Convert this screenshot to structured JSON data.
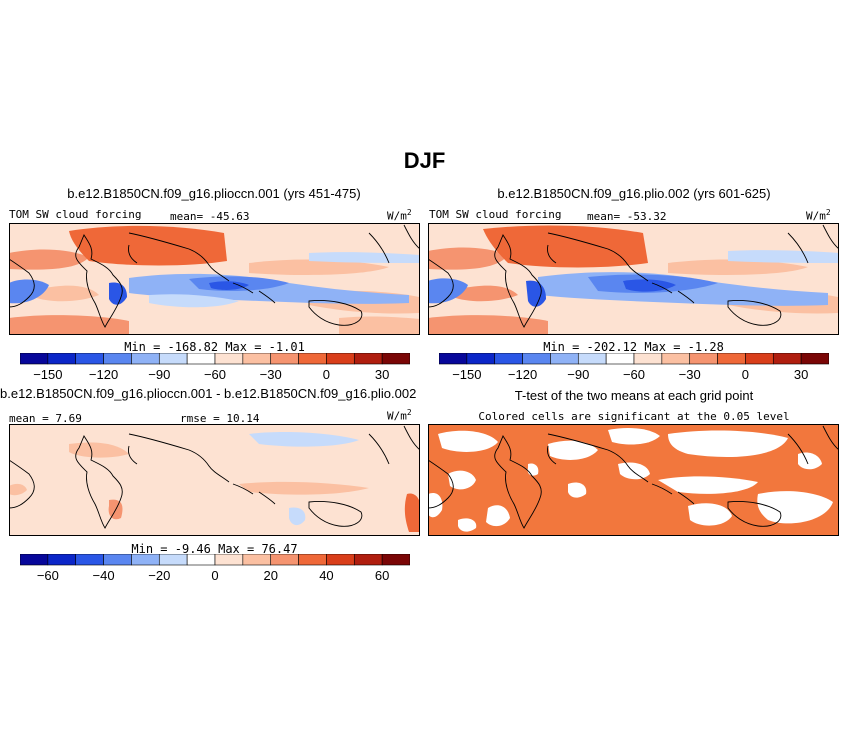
{
  "figure": {
    "title": "DJF",
    "palette_centered": [
      "#07079a",
      "#0b26c8",
      "#2a56e6",
      "#5a86f0",
      "#8fb2f6",
      "#c6dbfb",
      "#ffffff",
      "#fde2d2",
      "#fbc0a2",
      "#f59470",
      "#ef6838",
      "#d93e1a",
      "#b01e0f",
      "#7a0606"
    ]
  },
  "panels": [
    {
      "title": "b.e12.B1850CN.f09_g16.plioccn.001 (yrs 451-475)",
      "variable": "TOM SW cloud forcing",
      "mean_text": "mean= -45.63",
      "units": "W/m",
      "units_sup": "2",
      "minmax_text": "Min = -168.82  Max =  -1.01",
      "colorbar": {
        "colors": [
          "#07079a",
          "#0b26c8",
          "#2a56e6",
          "#5a86f0",
          "#8fb2f6",
          "#c6dbfb",
          "#ffffff",
          "#fde2d2",
          "#fbc0a2",
          "#f59470",
          "#ef6838",
          "#d93e1a",
          "#b01e0f",
          "#7a0606"
        ],
        "labels": [
          "-150",
          "-120",
          "-90",
          "-60",
          "-30",
          "0",
          "30"
        ]
      }
    },
    {
      "title": "b.e12.B1850CN.f09_g16.plio.002 (yrs 601-625)",
      "variable": "TOM SW cloud forcing",
      "mean_text": "mean= -53.32",
      "units": "W/m",
      "units_sup": "2",
      "minmax_text": "Min = -202.12  Max =  -1.28",
      "colorbar": {
        "colors": [
          "#07079a",
          "#0b26c8",
          "#2a56e6",
          "#5a86f0",
          "#8fb2f6",
          "#c6dbfb",
          "#ffffff",
          "#fde2d2",
          "#fbc0a2",
          "#f59470",
          "#ef6838",
          "#d93e1a",
          "#b01e0f",
          "#7a0606"
        ],
        "labels": [
          "-150",
          "-120",
          "-90",
          "-60",
          "-30",
          "0",
          "30"
        ]
      }
    },
    {
      "title": "b.e12.B1850CN.f09_g16.plioccn.001 - b.e12.B1850CN.f09_g16.plio.002",
      "mean_text": "mean =   7.69",
      "rmse_text": "rmse =  10.14",
      "units": "W/m",
      "units_sup": "2",
      "minmax_text": "Min = -9.46  Max =  76.47",
      "colorbar": {
        "colors": [
          "#07079a",
          "#0b26c8",
          "#2a56e6",
          "#5a86f0",
          "#8fb2f6",
          "#c6dbfb",
          "#ffffff",
          "#fde2d2",
          "#fbc0a2",
          "#f59470",
          "#ef6838",
          "#d93e1a",
          "#b01e0f",
          "#7a0606"
        ],
        "labels": [
          "-60",
          "-40",
          "-20",
          "0",
          "20",
          "40",
          "60"
        ]
      }
    },
    {
      "title": "T-test of the two means at each grid point",
      "subtitle": "Colored cells are significant at the 0.05 level",
      "significant_color": "#f2773d"
    }
  ]
}
